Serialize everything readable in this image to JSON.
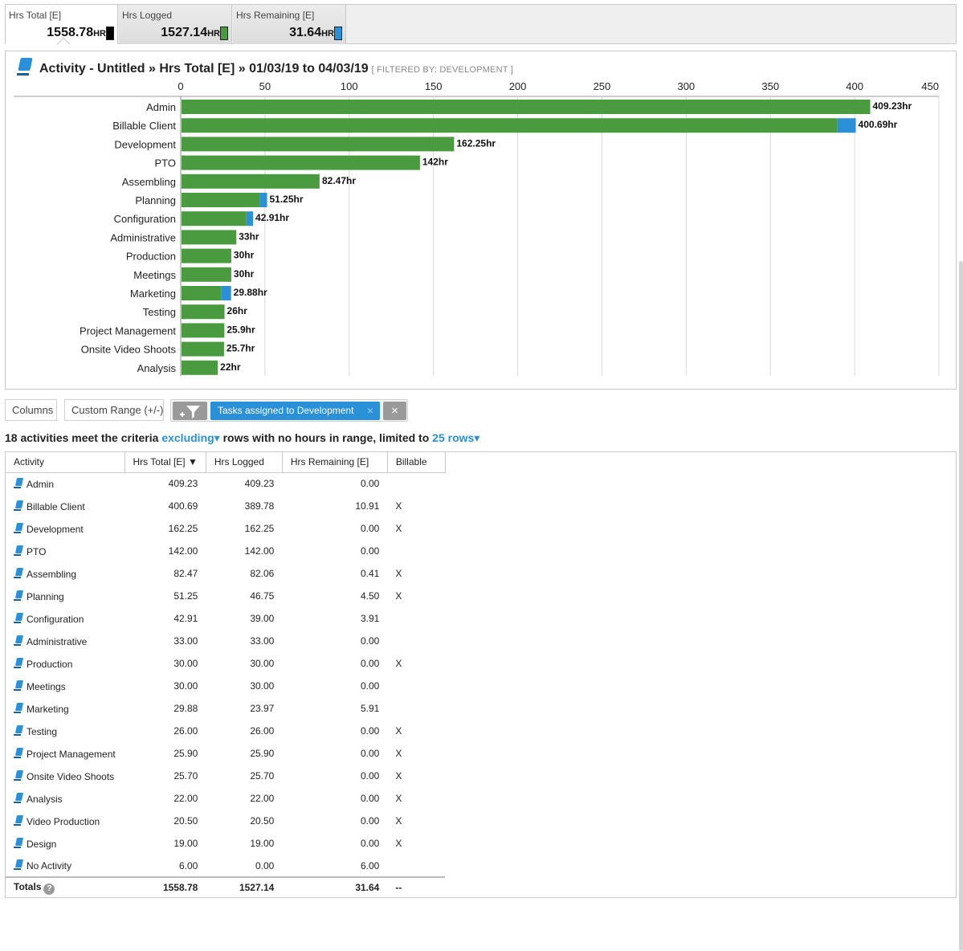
{
  "summary_tabs": [
    {
      "label": "Hrs Total [E]",
      "value": "1558.78",
      "unit": "HR",
      "swatch": "#000000"
    },
    {
      "label": "Hrs Logged",
      "value": "1527.14",
      "unit": "HR",
      "swatch": "#4a9a3f"
    },
    {
      "label": "Hrs Remaining [E]",
      "value": "31.64",
      "unit": "HR",
      "swatch": "#2a90d8"
    }
  ],
  "chart_panel": {
    "title": "Activity - Untitled » Hrs Total [E] » 01/03/19 to 04/03/19",
    "filter_note": "[ FILTERED BY: DEVELOPMENT ]"
  },
  "colors": {
    "logged": "#4a9a3f",
    "remaining": "#2a90d8",
    "accent": "#2a90d8"
  },
  "chart_data": {
    "type": "bar",
    "orientation": "horizontal",
    "stacked": true,
    "categories": [
      "Admin",
      "Billable Client",
      "Development",
      "PTO",
      "Assembling",
      "Planning",
      "Configuration",
      "Administrative",
      "Production",
      "Meetings",
      "Marketing",
      "Testing",
      "Project Management",
      "Onsite Video Shoots",
      "Analysis"
    ],
    "series": [
      {
        "name": "Hrs Logged",
        "values": [
          409.23,
          389.78,
          162.25,
          142.0,
          82.06,
          46.75,
          39.0,
          33.0,
          30.0,
          30.0,
          23.97,
          26.0,
          25.9,
          25.7,
          22.0
        ]
      },
      {
        "name": "Hrs Remaining [E]",
        "values": [
          0,
          10.91,
          0,
          0,
          0.41,
          4.5,
          3.91,
          0,
          0,
          0,
          5.91,
          0,
          0,
          0,
          0
        ]
      }
    ],
    "data_labels": [
      "409.23hr",
      "400.69hr",
      "162.25hr",
      "142hr",
      "82.47hr",
      "51.25hr",
      "42.91hr",
      "33hr",
      "30hr",
      "30hr",
      "29.88hr",
      "26hr",
      "25.9hr",
      "25.7hr",
      "22hr"
    ],
    "xlim": [
      0,
      450
    ],
    "x_ticks": [
      0,
      50,
      100,
      150,
      200,
      250,
      300,
      350,
      400,
      450
    ],
    "axis_position": "top",
    "grid": true
  },
  "toolbar": {
    "columns_label": "Columns",
    "custom_range_label": "Custom Range (+/-)",
    "filter_pill_label": "Tasks assigned to Development",
    "filter_pill_close": "×",
    "clear_filters": "×"
  },
  "criteria": {
    "prefix": "18 activities meet the criteria",
    "mode": "excluding▾",
    "middle": "rows with no hours in range, limited to",
    "limit": "25 rows▾"
  },
  "table": {
    "headers": [
      "Activity",
      "Hrs Total [E] ▼",
      "Hrs Logged",
      "Hrs Remaining [E]",
      "Billable"
    ],
    "rows": [
      [
        "Admin",
        "409.23",
        "409.23",
        "0.00",
        ""
      ],
      [
        "Billable Client",
        "400.69",
        "389.78",
        "10.91",
        "X"
      ],
      [
        "Development",
        "162.25",
        "162.25",
        "0.00",
        "X"
      ],
      [
        "PTO",
        "142.00",
        "142.00",
        "0.00",
        ""
      ],
      [
        "Assembling",
        "82.47",
        "82.06",
        "0.41",
        "X"
      ],
      [
        "Planning",
        "51.25",
        "46.75",
        "4.50",
        "X"
      ],
      [
        "Configuration",
        "42.91",
        "39.00",
        "3.91",
        ""
      ],
      [
        "Administrative",
        "33.00",
        "33.00",
        "0.00",
        ""
      ],
      [
        "Production",
        "30.00",
        "30.00",
        "0.00",
        "X"
      ],
      [
        "Meetings",
        "30.00",
        "30.00",
        "0.00",
        ""
      ],
      [
        "Marketing",
        "29.88",
        "23.97",
        "5.91",
        ""
      ],
      [
        "Testing",
        "26.00",
        "26.00",
        "0.00",
        "X"
      ],
      [
        "Project Management",
        "25.90",
        "25.90",
        "0.00",
        "X"
      ],
      [
        "Onsite Video Shoots",
        "25.70",
        "25.70",
        "0.00",
        "X"
      ],
      [
        "Analysis",
        "22.00",
        "22.00",
        "0.00",
        "X"
      ],
      [
        "Video Production",
        "20.50",
        "20.50",
        "0.00",
        "X"
      ],
      [
        "Design",
        "19.00",
        "19.00",
        "0.00",
        "X"
      ],
      [
        "No Activity",
        "6.00",
        "0.00",
        "6.00",
        ""
      ]
    ],
    "totals": {
      "label": "Totals",
      "help": "?",
      "total": "1558.78",
      "logged": "1527.14",
      "remaining": "31.64",
      "billable": "--"
    }
  }
}
